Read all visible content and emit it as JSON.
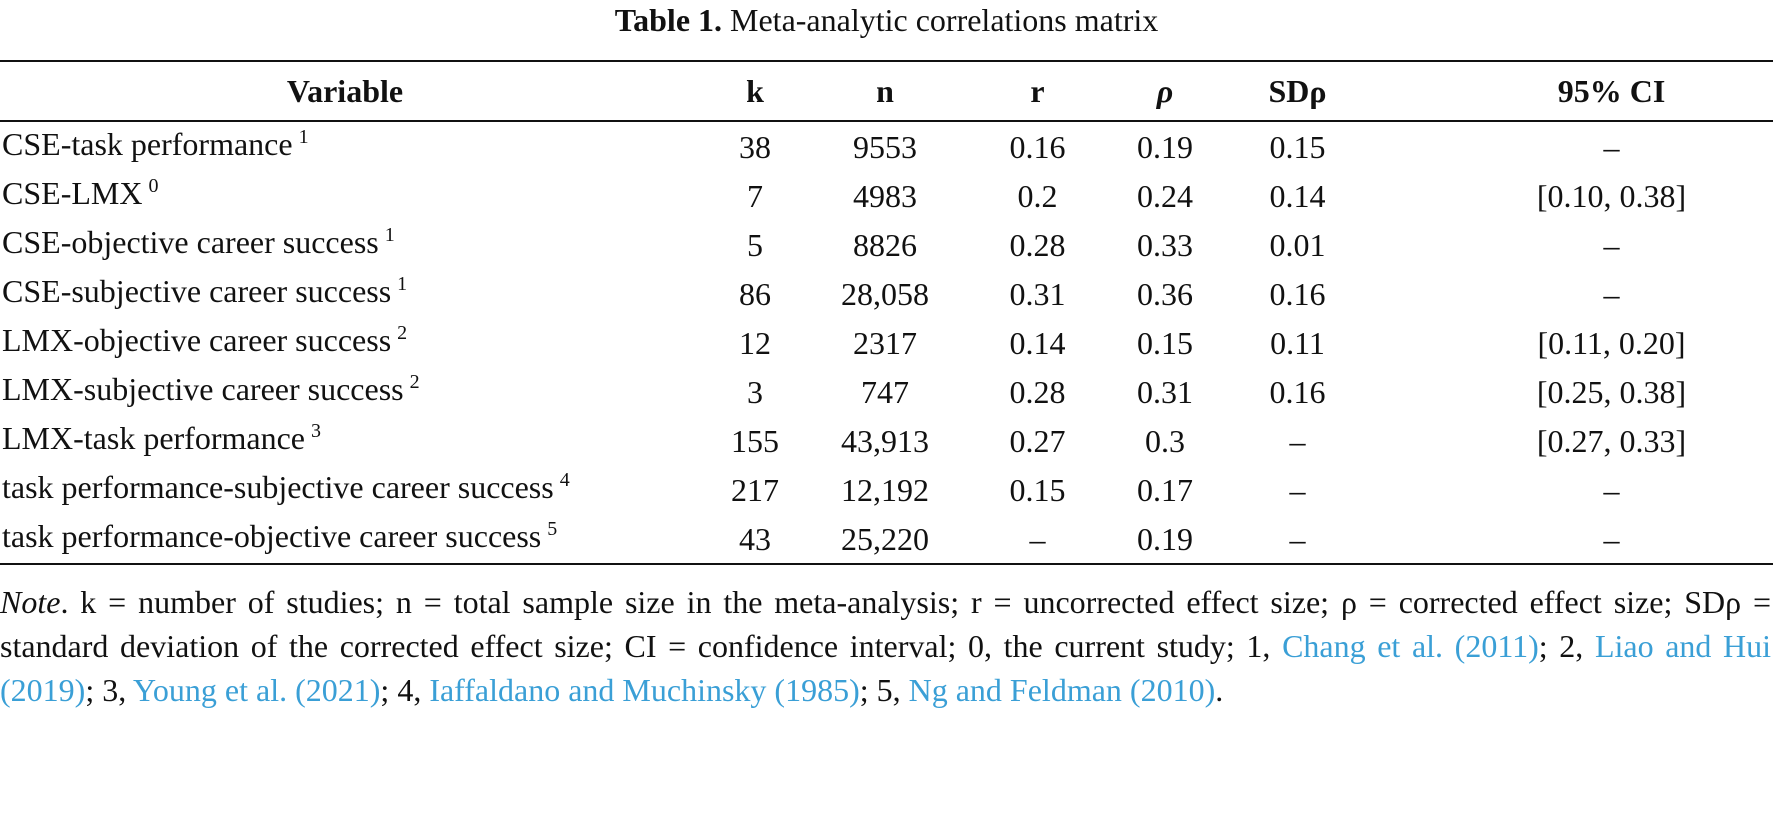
{
  "caption": {
    "label": "Table 1.",
    "title": "Meta-analytic correlations matrix"
  },
  "headers": [
    "Variable",
    "k",
    "n",
    "r",
    "ρ",
    "SDρ",
    "95% CI"
  ],
  "rows": [
    {
      "variable": "CSE-task performance",
      "ref": "1",
      "k": "38",
      "n": "9553",
      "r": "0.16",
      "rho": "0.19",
      "sd": "0.15",
      "ci": "–"
    },
    {
      "variable": "CSE-LMX",
      "ref": "0",
      "k": "7",
      "n": "4983",
      "r": "0.2",
      "rho": "0.24",
      "sd": "0.14",
      "ci": "[0.10, 0.38]"
    },
    {
      "variable": "CSE-objective career success",
      "ref": "1",
      "k": "5",
      "n": "8826",
      "r": "0.28",
      "rho": "0.33",
      "sd": "0.01",
      "ci": "–"
    },
    {
      "variable": "CSE-subjective career success",
      "ref": "1",
      "k": "86",
      "n": "28,058",
      "r": "0.31",
      "rho": "0.36",
      "sd": "0.16",
      "ci": "–"
    },
    {
      "variable": "LMX-objective career success",
      "ref": "2",
      "k": "12",
      "n": "2317",
      "r": "0.14",
      "rho": "0.15",
      "sd": "0.11",
      "ci": "[0.11, 0.20]"
    },
    {
      "variable": "LMX-subjective career success",
      "ref": "2",
      "k": "3",
      "n": "747",
      "r": "0.28",
      "rho": "0.31",
      "sd": "0.16",
      "ci": "[0.25, 0.38]"
    },
    {
      "variable": "LMX-task performance",
      "ref": "3",
      "k": "155",
      "n": "43,913",
      "r": "0.27",
      "rho": "0.3",
      "sd": "–",
      "ci": "[0.27, 0.33]"
    },
    {
      "variable": "task performance-subjective career success",
      "ref": "4",
      "k": "217",
      "n": "12,192",
      "r": "0.15",
      "rho": "0.17",
      "sd": "–",
      "ci": "–"
    },
    {
      "variable": "task performance-objective career success",
      "ref": "5",
      "k": "43",
      "n": "25,220",
      "r": "–",
      "rho": "0.19",
      "sd": "–",
      "ci": "–"
    }
  ],
  "note": {
    "label": "Note",
    "p1": ". k = number of studies; n = total sample size in the meta-analysis; r = uncorrected effect size; ρ = corrected effect size; SDρ = standard deviation of the corrected effect size; CI = confidence interval; 0, the current study; 1, ",
    "ref1": "Chang et al. (2011)",
    "p2": "; 2, ",
    "ref2": "Liao and Hui (2019)",
    "p3": "; 3, ",
    "ref3": "Young et al. (2021)",
    "p4": "; 4, ",
    "ref4": "Iaffaldano and Muchinsky (1985)",
    "p5": "; 5, ",
    "ref5": "Ng and Feldman (2010)",
    "p6": "."
  },
  "colors": {
    "link": "#3a9fd6",
    "text": "#111111"
  }
}
